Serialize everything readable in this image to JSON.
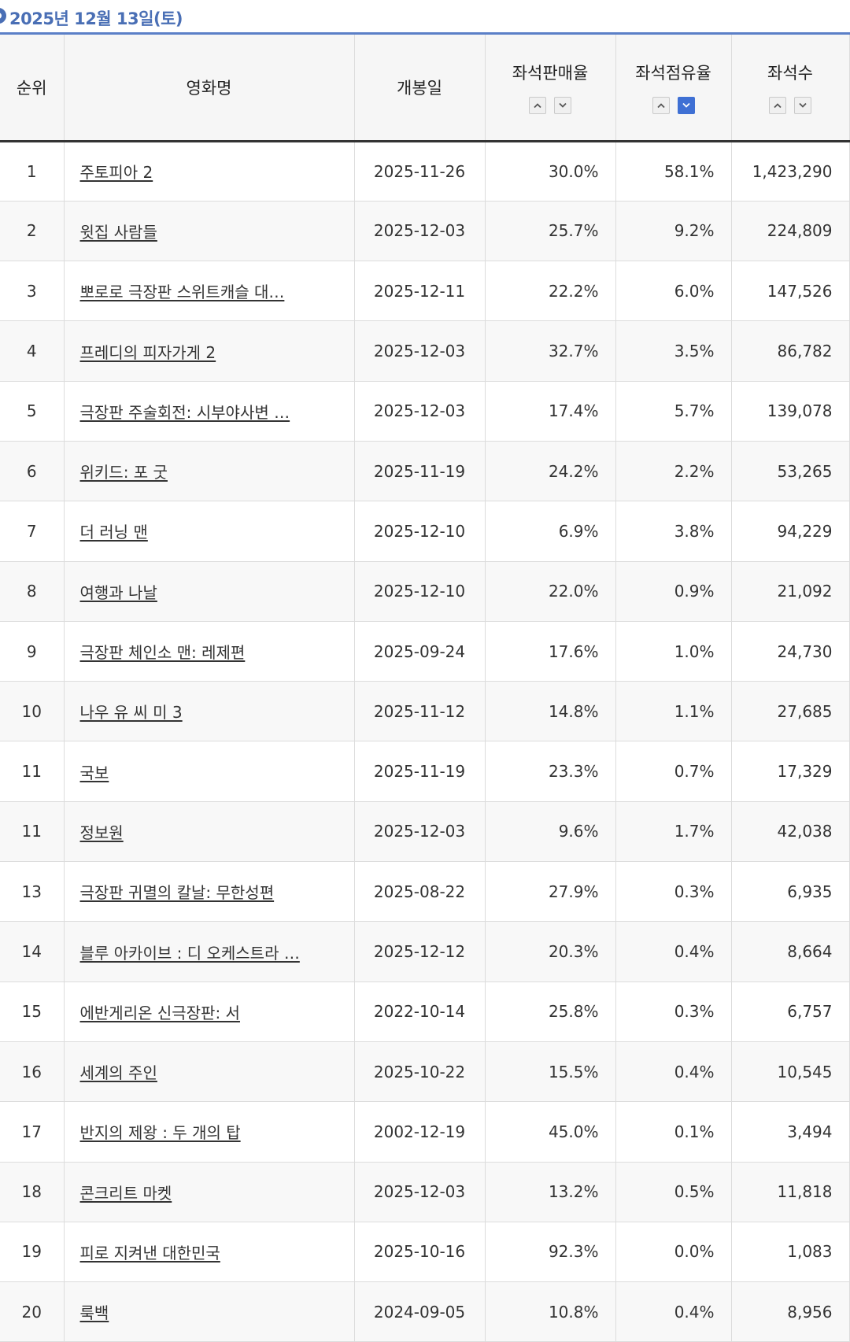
{
  "header": {
    "date": "2025년 12월 13일(토)"
  },
  "columns": {
    "rank": "순위",
    "title": "영화명",
    "open_date": "개봉일",
    "seat_sales_rate": "좌석판매율",
    "seat_share_rate": "좌석점유율",
    "seats": "좌석수"
  },
  "sort_state": {
    "active_column": "좌석점유율",
    "direction": "descending"
  },
  "colors": {
    "accent": "#4a6fb5",
    "active_sort": "#3f70d4"
  },
  "rows": [
    {
      "rank": "1",
      "title": "주토피아 2",
      "open_date": "2025-11-26",
      "sales": "30.0%",
      "share": "58.1%",
      "seats": "1,423,290"
    },
    {
      "rank": "2",
      "title": "윗집 사람들",
      "open_date": "2025-12-03",
      "sales": "25.7%",
      "share": "9.2%",
      "seats": "224,809"
    },
    {
      "rank": "3",
      "title": "뽀로로 극장판 스위트캐슬 대…",
      "open_date": "2025-12-11",
      "sales": "22.2%",
      "share": "6.0%",
      "seats": "147,526"
    },
    {
      "rank": "4",
      "title": "프레디의 피자가게 2",
      "open_date": "2025-12-03",
      "sales": "32.7%",
      "share": "3.5%",
      "seats": "86,782"
    },
    {
      "rank": "5",
      "title": "극장판 주술회전: 시부야사변 …",
      "open_date": "2025-12-03",
      "sales": "17.4%",
      "share": "5.7%",
      "seats": "139,078"
    },
    {
      "rank": "6",
      "title": "위키드: 포 굿",
      "open_date": "2025-11-19",
      "sales": "24.2%",
      "share": "2.2%",
      "seats": "53,265"
    },
    {
      "rank": "7",
      "title": "더 러닝 맨",
      "open_date": "2025-12-10",
      "sales": "6.9%",
      "share": "3.8%",
      "seats": "94,229"
    },
    {
      "rank": "8",
      "title": "여행과 나날",
      "open_date": "2025-12-10",
      "sales": "22.0%",
      "share": "0.9%",
      "seats": "21,092"
    },
    {
      "rank": "9",
      "title": "극장판 체인소 맨: 레제편",
      "open_date": "2025-09-24",
      "sales": "17.6%",
      "share": "1.0%",
      "seats": "24,730"
    },
    {
      "rank": "10",
      "title": "나우 유 씨 미 3",
      "open_date": "2025-11-12",
      "sales": "14.8%",
      "share": "1.1%",
      "seats": "27,685"
    },
    {
      "rank": "11",
      "title": "국보",
      "open_date": "2025-11-19",
      "sales": "23.3%",
      "share": "0.7%",
      "seats": "17,329"
    },
    {
      "rank": "11",
      "title": "정보원",
      "open_date": "2025-12-03",
      "sales": "9.6%",
      "share": "1.7%",
      "seats": "42,038"
    },
    {
      "rank": "13",
      "title": "극장판 귀멸의 칼날: 무한성편",
      "open_date": "2025-08-22",
      "sales": "27.9%",
      "share": "0.3%",
      "seats": "6,935"
    },
    {
      "rank": "14",
      "title": "블루 아카이브 : 디 오케스트라 …",
      "open_date": "2025-12-12",
      "sales": "20.3%",
      "share": "0.4%",
      "seats": "8,664"
    },
    {
      "rank": "15",
      "title": "에반게리온 신극장판: 서",
      "open_date": "2022-10-14",
      "sales": "25.8%",
      "share": "0.3%",
      "seats": "6,757"
    },
    {
      "rank": "16",
      "title": "세계의 주인",
      "open_date": "2025-10-22",
      "sales": "15.5%",
      "share": "0.4%",
      "seats": "10,545"
    },
    {
      "rank": "17",
      "title": "반지의 제왕 : 두 개의 탑",
      "open_date": "2002-12-19",
      "sales": "45.0%",
      "share": "0.1%",
      "seats": "3,494"
    },
    {
      "rank": "18",
      "title": "콘크리트 마켓",
      "open_date": "2025-12-03",
      "sales": "13.2%",
      "share": "0.5%",
      "seats": "11,818"
    },
    {
      "rank": "19",
      "title": "피로 지켜낸 대한민국",
      "open_date": "2025-10-16",
      "sales": "92.3%",
      "share": "0.0%",
      "seats": "1,083"
    },
    {
      "rank": "20",
      "title": "룩백",
      "open_date": "2024-09-05",
      "sales": "10.8%",
      "share": "0.4%",
      "seats": "8,956"
    }
  ]
}
